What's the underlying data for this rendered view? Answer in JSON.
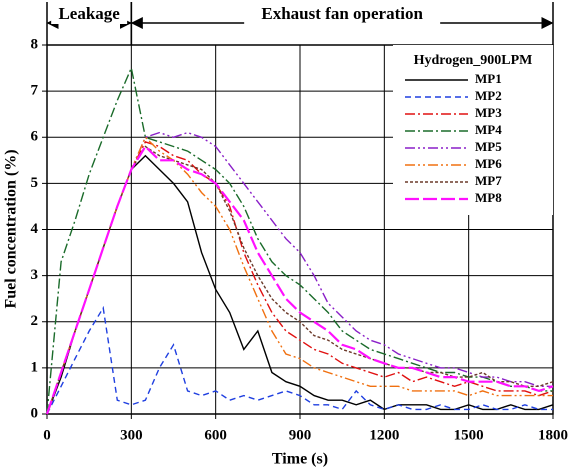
{
  "chart_data": {
    "type": "line",
    "x_label": "Time (s)",
    "y_label": "Fuel concentration (%)",
    "legend_title": "Hydrogen_900LPM",
    "legend_position": "upper right",
    "grid": true,
    "xlim": [
      0,
      1800
    ],
    "ylim": [
      0,
      8
    ],
    "xticks": [
      0,
      300,
      600,
      900,
      1200,
      1500,
      1800
    ],
    "yticks": [
      0,
      1,
      2,
      3,
      4,
      5,
      6,
      7,
      8
    ],
    "annotations": [
      {
        "text": "Leakage",
        "x": [
          0,
          300
        ]
      },
      {
        "text": "Exhaust fan operation",
        "x": [
          300,
          1800
        ]
      }
    ],
    "x": [
      0,
      50,
      100,
      150,
      200,
      250,
      300,
      350,
      400,
      450,
      500,
      550,
      600,
      650,
      700,
      750,
      800,
      850,
      900,
      950,
      1000,
      1050,
      1100,
      1150,
      1200,
      1250,
      1300,
      1350,
      1400,
      1450,
      1500,
      1550,
      1600,
      1650,
      1700,
      1750,
      1800
    ],
    "series": [
      {
        "name": "MP1",
        "color": "#000000",
        "dash": "none",
        "values": [
          0,
          0.8,
          1.8,
          2.7,
          3.6,
          4.5,
          5.3,
          5.6,
          5.3,
          5,
          4.6,
          3.5,
          2.7,
          2.2,
          1.4,
          1.8,
          0.9,
          0.7,
          0.6,
          0.4,
          0.3,
          0.3,
          0.2,
          0.3,
          0.1,
          0.2,
          0.2,
          0.2,
          0.1,
          0.1,
          0.2,
          0.1,
          0.1,
          0.2,
          0.1,
          0.1,
          0.2
        ]
      },
      {
        "name": "MP2",
        "color": "#1f3fe0",
        "dash": "6,4",
        "values": [
          0,
          0.6,
          1.2,
          1.8,
          2.3,
          0.3,
          0.2,
          0.3,
          1,
          1.5,
          0.5,
          0.4,
          0.5,
          0.3,
          0.4,
          0.3,
          0.4,
          0.5,
          0.4,
          0.2,
          0.2,
          0.1,
          0.5,
          0.2,
          0.1,
          0.2,
          0.1,
          0.1,
          0.2,
          0.1,
          0.1,
          0.2,
          0.1,
          0.1,
          0.2,
          0.1,
          0.1
        ]
      },
      {
        "name": "MP3",
        "color": "#e01010",
        "dash": "10,3,2,3",
        "values": [
          0,
          0.9,
          1.8,
          2.7,
          3.6,
          4.5,
          5.3,
          5.9,
          5.8,
          5.6,
          5.5,
          5.2,
          5,
          4.5,
          3.5,
          2.8,
          2.2,
          1.8,
          1.6,
          1.4,
          1.3,
          1.1,
          1,
          0.9,
          0.8,
          0.9,
          0.7,
          0.8,
          0.7,
          0.6,
          0.7,
          0.6,
          0.5,
          0.5,
          0.5,
          0.4,
          0.5
        ]
      },
      {
        "name": "MP4",
        "color": "#1a6b2a",
        "dash": "10,3,2,3",
        "values": [
          0,
          3.3,
          4.2,
          5.2,
          6,
          6.8,
          7.5,
          6,
          5.9,
          5.8,
          5.7,
          5.5,
          5.3,
          5,
          4.5,
          3.8,
          3.3,
          3,
          2.8,
          2.5,
          2.2,
          1.8,
          1.6,
          1.4,
          1.3,
          1.2,
          1.1,
          1,
          0.9,
          0.9,
          0.8,
          0.8,
          0.7,
          0.6,
          0.6,
          0.5,
          0.5
        ]
      },
      {
        "name": "MP5",
        "color": "#8a1fc8",
        "dash": "10,3,2,3,2,3",
        "values": [
          0,
          0.9,
          1.8,
          2.7,
          3.6,
          4.5,
          5.3,
          6,
          6.1,
          6,
          6.1,
          6,
          5.8,
          5.4,
          5,
          4.6,
          4.2,
          3.8,
          3.5,
          3,
          2.4,
          2.1,
          1.8,
          1.6,
          1.5,
          1.3,
          1.2,
          1.1,
          1,
          1,
          0.9,
          0.8,
          0.8,
          0.7,
          0.7,
          0.6,
          0.6
        ]
      },
      {
        "name": "MP6",
        "color": "#f07010",
        "dash": "10,3,2,3,2,3",
        "values": [
          0,
          0.9,
          1.8,
          2.7,
          3.6,
          4.5,
          5.3,
          6,
          5.7,
          5.5,
          5.2,
          4.8,
          4.5,
          4,
          3.2,
          2.5,
          1.8,
          1.3,
          1.2,
          1,
          0.9,
          0.8,
          0.7,
          0.6,
          0.6,
          0.6,
          0.5,
          0.5,
          0.5,
          0.5,
          0.4,
          0.5,
          0.4,
          0.4,
          0.4,
          0.4,
          0.4
        ]
      },
      {
        "name": "MP7",
        "color": "#6b3a2a",
        "dash": "3,2",
        "values": [
          0,
          0.9,
          1.8,
          2.7,
          3.6,
          4.5,
          5.3,
          5.8,
          5.6,
          5.5,
          5.4,
          5.3,
          5,
          4.4,
          3.6,
          3,
          2.5,
          2.2,
          2,
          1.7,
          1.6,
          1.4,
          1.3,
          1.2,
          1.1,
          1,
          1,
          0.9,
          0.9,
          0.8,
          0.8,
          0.9,
          0.7,
          0.7,
          0.6,
          0.6,
          0.7
        ]
      },
      {
        "name": "MP8",
        "color": "#ff10ff",
        "dash": "14,4",
        "values": [
          0,
          0.9,
          1.8,
          2.7,
          3.6,
          4.5,
          5.3,
          5.8,
          5.5,
          5.5,
          5.3,
          5.2,
          5,
          4.6,
          4.2,
          3.5,
          3,
          2.5,
          2.2,
          2,
          1.8,
          1.5,
          1.4,
          1.2,
          1.1,
          1,
          1,
          0.9,
          0.8,
          0.8,
          0.7,
          0.7,
          0.7,
          0.6,
          0.6,
          0.5,
          0.6
        ]
      }
    ]
  }
}
